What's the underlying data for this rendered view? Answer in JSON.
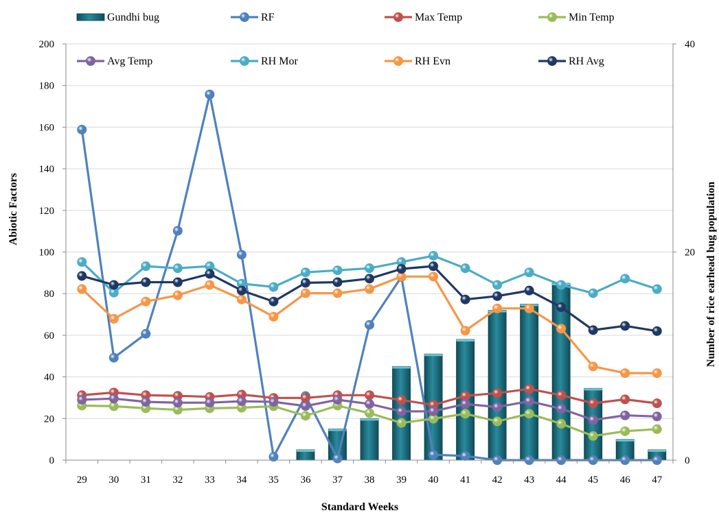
{
  "chart_data": {
    "type": "bar+line",
    "xlabel": "Standard Weeks",
    "ylabel_left": "Abiotic Factors",
    "ylabel_right": "Number of rice earhead bug population",
    "categories": [
      "29",
      "30",
      "31",
      "32",
      "33",
      "34",
      "35",
      "36",
      "37",
      "38",
      "39",
      "40",
      "41",
      "42",
      "43",
      "44",
      "45",
      "46",
      "47"
    ],
    "ylim_left": [
      0,
      200
    ],
    "yticks_left": [
      0,
      20,
      40,
      60,
      80,
      100,
      120,
      140,
      160,
      180,
      200
    ],
    "ylim_right": [
      0,
      40
    ],
    "yticks_right": [
      0,
      20,
      40
    ],
    "grid": true,
    "legend_position": "top",
    "bar_series": {
      "name": "Gundhi bug",
      "axis": "right",
      "color": "#1f6f7f",
      "values": [
        0,
        0,
        0,
        0,
        0,
        0,
        0,
        1,
        3,
        4,
        9,
        10.2,
        11.6,
        14.4,
        15,
        17,
        6.9,
        2,
        1
      ]
    },
    "line_series": [
      {
        "name": "RF",
        "color": "#4f81bd",
        "values": [
          158.8,
          49.2,
          60.7,
          110.2,
          175.7,
          98.7,
          1.6,
          30.8,
          0.8,
          65,
          88,
          2.6,
          2,
          0,
          0,
          0,
          0,
          0,
          0
        ]
      },
      {
        "name": "Max Temp",
        "color": "#c0504d",
        "values": [
          31.2,
          32.5,
          31.2,
          30.9,
          30.4,
          31.5,
          29.9,
          29.9,
          31.2,
          31.2,
          28.9,
          26.5,
          30.9,
          32.2,
          34.2,
          31.2,
          27.3,
          29.2,
          27.3
        ]
      },
      {
        "name": "Min Temp",
        "color": "#9bbb59",
        "values": [
          26.2,
          25.9,
          24.9,
          24.2,
          24.9,
          25.2,
          25.9,
          21.3,
          26.2,
          22.6,
          17.9,
          19.9,
          22.3,
          18.6,
          22.3,
          17.5,
          11.6,
          13.9,
          14.9
        ]
      },
      {
        "name": "Avg Temp",
        "color": "#8064a2",
        "values": [
          29,
          29.6,
          28,
          27.6,
          27.6,
          28.3,
          28,
          26,
          29,
          27,
          23.4,
          23.5,
          27,
          25.5,
          28.3,
          24.7,
          19.3,
          21.5,
          21
        ]
      },
      {
        "name": "RH Mor",
        "color": "#4bacc6",
        "values": [
          95.2,
          80.5,
          93.2,
          92.2,
          93.2,
          84.8,
          83.2,
          90.2,
          91.2,
          92.2,
          95.2,
          98.2,
          92.2,
          84.2,
          90.2,
          84.2,
          80.2,
          87.2,
          82.2
        ]
      },
      {
        "name": "RH Evn",
        "color": "#f79646",
        "values": [
          82.2,
          67.9,
          76.2,
          79.2,
          84.2,
          77.2,
          68.9,
          80.2,
          80.2,
          82.2,
          88.2,
          88.2,
          62.2,
          72.9,
          72.9,
          63.2,
          45,
          41.8,
          41.8
        ]
      },
      {
        "name": "RH Avg",
        "color": "#1f3864",
        "values": [
          88.5,
          84.2,
          85.5,
          85.5,
          89.5,
          81.5,
          76.2,
          85.2,
          85.5,
          87.2,
          91.9,
          93.2,
          77.2,
          78.8,
          81.5,
          73.5,
          62.5,
          64.5,
          62
        ]
      }
    ],
    "legend": [
      [
        "Gundhi bug",
        "RF",
        "Max Temp",
        "Min Temp"
      ],
      [
        "Avg Temp",
        "RH Mor",
        "RH Evn",
        "RH Avg"
      ]
    ]
  }
}
